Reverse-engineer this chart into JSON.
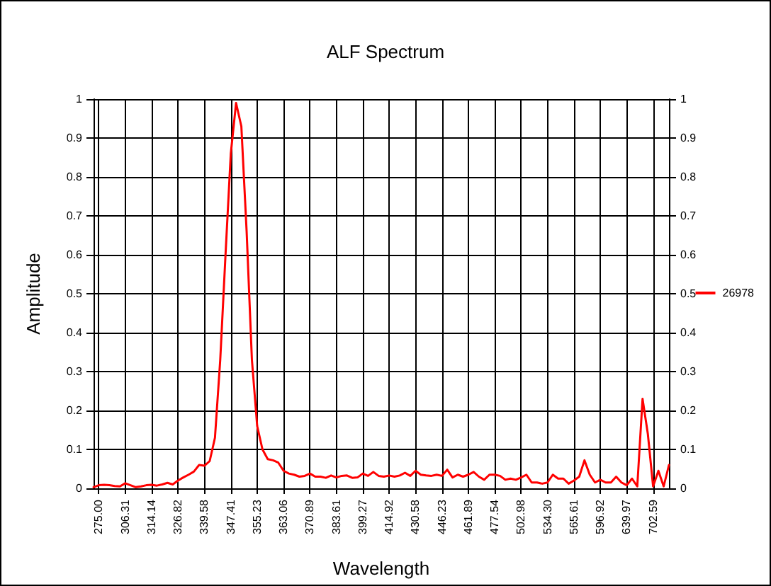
{
  "chart_data": {
    "type": "line",
    "title": "ALF Spectrum",
    "xlabel": "Wavelength",
    "ylabel": "Amplitude",
    "categories": [
      null,
      "275.00",
      null,
      null,
      null,
      null,
      "306.31",
      null,
      null,
      null,
      null,
      "314.14",
      null,
      null,
      null,
      null,
      "326.82",
      null,
      null,
      null,
      null,
      "339.58",
      null,
      null,
      null,
      null,
      "347.41",
      null,
      null,
      null,
      null,
      "355.23",
      null,
      null,
      null,
      null,
      "363.06",
      null,
      null,
      null,
      null,
      "370.89",
      null,
      null,
      null,
      null,
      "383.61",
      null,
      null,
      null,
      null,
      "399.27",
      null,
      null,
      null,
      null,
      "414.92",
      null,
      null,
      null,
      null,
      "430.58",
      null,
      null,
      null,
      null,
      "446.23",
      null,
      null,
      null,
      null,
      "461.89",
      null,
      null,
      null,
      null,
      "477.54",
      null,
      null,
      null,
      null,
      "502.98",
      null,
      null,
      null,
      null,
      "534.30",
      null,
      null,
      null,
      null,
      "565.61",
      null,
      null,
      null,
      null,
      "596.92",
      null,
      null,
      null,
      null,
      "639.97",
      null,
      null,
      null,
      null,
      "702.59",
      null,
      null,
      null
    ],
    "series": [
      {
        "name": "26978",
        "color": "#ff0000",
        "values": [
          0.003,
          0.008,
          0.009,
          0.008,
          0.006,
          0.005,
          0.013,
          0.008,
          0.003,
          0.005,
          0.008,
          0.009,
          0.007,
          0.01,
          0.014,
          0.01,
          0.02,
          0.028,
          0.035,
          0.043,
          0.06,
          0.058,
          0.07,
          0.13,
          0.33,
          0.6,
          0.86,
          0.99,
          0.93,
          0.66,
          0.33,
          0.16,
          0.1,
          0.075,
          0.072,
          0.066,
          0.045,
          0.038,
          0.035,
          0.03,
          0.032,
          0.038,
          0.03,
          0.03,
          0.027,
          0.033,
          0.028,
          0.032,
          0.033,
          0.027,
          0.028,
          0.038,
          0.032,
          0.042,
          0.032,
          0.03,
          0.033,
          0.03,
          0.033,
          0.04,
          0.032,
          0.045,
          0.035,
          0.033,
          0.032,
          0.035,
          0.032,
          0.048,
          0.028,
          0.035,
          0.03,
          0.035,
          0.042,
          0.03,
          0.022,
          0.035,
          0.035,
          0.032,
          0.022,
          0.025,
          0.022,
          0.028,
          0.035,
          0.015,
          0.015,
          0.012,
          0.015,
          0.035,
          0.025,
          0.025,
          0.012,
          0.02,
          0.03,
          0.072,
          0.035,
          0.015,
          0.022,
          0.015,
          0.015,
          0.03,
          0.015,
          0.008,
          0.025,
          0.005,
          0.23,
          0.14,
          0.005,
          0.045,
          0.005,
          0.06
        ]
      }
    ],
    "ylim": [
      0,
      1
    ],
    "yticks": [
      0,
      0.1,
      0.2,
      0.3,
      0.4,
      0.5,
      0.6,
      0.7,
      0.8,
      0.9,
      1
    ],
    "y2lim": [
      0,
      1
    ],
    "y2ticks": [
      0,
      0.1,
      0.2,
      0.3,
      0.4,
      0.5,
      0.6,
      0.7,
      0.8,
      0.9,
      1
    ],
    "grid": true,
    "legend": "right",
    "marker": "none",
    "line_style": "solid"
  }
}
